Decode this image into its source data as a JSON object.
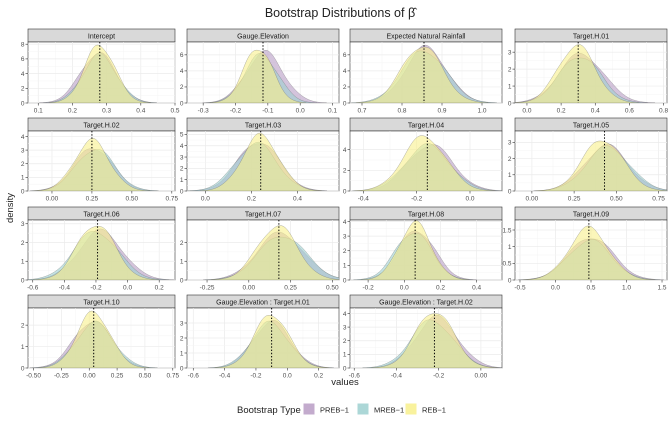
{
  "chart_data": {
    "type": "area",
    "title": "Bootstrap Distributions of",
    "title_symbol": "β̂",
    "xlabel": "values",
    "ylabel": "density",
    "legend": {
      "title": "Bootstrap Type",
      "placement": "bottom",
      "entries": [
        {
          "name": "PREB−1",
          "color": "#b89cc4"
        },
        {
          "name": "MREB−1",
          "color": "#9ed0d0"
        },
        {
          "name": "REB−1",
          "color": "#f8f08c"
        }
      ]
    },
    "panels": [
      {
        "label": "Intercept",
        "xlim": [
          0.07,
          0.5
        ],
        "ylim": [
          0,
          8.3
        ],
        "xticks": [
          0.1,
          0.2,
          0.3,
          0.4,
          0.5
        ],
        "xtick_labels": [
          "0.1",
          "0.2",
          "0.3",
          "0.4",
          "0.5"
        ],
        "yticks": [
          0,
          2,
          4,
          6,
          8
        ],
        "vline": 0.28,
        "means": [
          0.275,
          0.28,
          0.28
        ],
        "sds": [
          0.052,
          0.05,
          0.045
        ],
        "peaks": [
          6.8,
          6.5,
          7.9
        ]
      },
      {
        "label": "Gauge.Elevation",
        "xlim": [
          -0.35,
          0.12
        ],
        "ylim": [
          0,
          7.6
        ],
        "xticks": [
          -0.3,
          -0.2,
          -0.1,
          0.0,
          0.1
        ],
        "xtick_labels": [
          "-0.3",
          "-0.2",
          "-0.1",
          "0.0",
          "0.1"
        ],
        "yticks": [
          0,
          2,
          4,
          6
        ],
        "vline": -0.115,
        "means": [
          -0.11,
          -0.12,
          -0.13
        ],
        "sds": [
          0.058,
          0.052,
          0.045
        ],
        "peaks": [
          6.3,
          6.0,
          6.9
        ]
      },
      {
        "label": "Expected Natural Rainfall",
        "xlim": [
          0.67,
          1.05
        ],
        "ylim": [
          0,
          7.6
        ],
        "xticks": [
          0.7,
          0.8,
          0.9,
          1.0
        ],
        "xtick_labels": [
          "0.7",
          "0.8",
          "0.9",
          "1.0"
        ],
        "yticks": [
          0,
          2,
          4,
          6
        ],
        "vline": 0.855,
        "means": [
          0.86,
          0.855,
          0.85
        ],
        "sds": [
          0.052,
          0.055,
          0.05
        ],
        "peaks": [
          6.9,
          6.6,
          7.2
        ]
      },
      {
        "label": "Target.H.01",
        "xlim": [
          -0.07,
          0.82
        ],
        "ylim": [
          0,
          3.6
        ],
        "xticks": [
          0.0,
          0.2,
          0.4,
          0.6,
          0.8
        ],
        "xtick_labels": [
          "0.0",
          "0.2",
          "0.4",
          "0.6",
          "0.8"
        ],
        "yticks": [
          0,
          1,
          2,
          3
        ],
        "vline": 0.3,
        "means": [
          0.32,
          0.31,
          0.29
        ],
        "sds": [
          0.13,
          0.12,
          0.11
        ],
        "peaks": [
          2.9,
          2.8,
          3.4
        ]
      },
      {
        "label": "Target.H.02",
        "xlim": [
          -0.15,
          0.77
        ],
        "ylim": [
          0,
          4.4
        ],
        "xticks": [
          0.0,
          0.25,
          0.5,
          0.75
        ],
        "xtick_labels": [
          "0.00",
          "0.25",
          "0.50",
          "0.75"
        ],
        "yticks": [
          0,
          1,
          2,
          3,
          4
        ],
        "vline": 0.25,
        "means": [
          0.26,
          0.27,
          0.25
        ],
        "sds": [
          0.12,
          0.12,
          0.11
        ],
        "peaks": [
          3.2,
          3.1,
          3.7
        ]
      },
      {
        "label": "Target.H.03",
        "xlim": [
          -0.08,
          0.58
        ],
        "ylim": [
          0,
          5.3
        ],
        "xticks": [
          0.0,
          0.2,
          0.4
        ],
        "xtick_labels": [
          "0.0",
          "0.2",
          "0.4"
        ],
        "yticks": [
          0,
          1,
          2,
          3,
          4,
          5
        ],
        "vline": 0.24,
        "means": [
          0.23,
          0.22,
          0.24
        ],
        "sds": [
          0.09,
          0.09,
          0.08
        ],
        "peaks": [
          4.4,
          4.2,
          4.9
        ]
      },
      {
        "label": "Target.H.04",
        "xlim": [
          -0.45,
          0.12
        ],
        "ylim": [
          0,
          5.8
        ],
        "xticks": [
          -0.4,
          -0.2,
          0.0
        ],
        "xtick_labels": [
          "-0.4",
          "-0.2",
          "0.0"
        ],
        "yticks": [
          0,
          2,
          4
        ],
        "vline": -0.16,
        "means": [
          -0.15,
          -0.16,
          -0.17
        ],
        "sds": [
          0.085,
          0.085,
          0.08
        ],
        "peaks": [
          4.5,
          4.4,
          5.3
        ]
      },
      {
        "label": "Target.H.05",
        "xlim": [
          -0.1,
          0.8
        ],
        "ylim": [
          0,
          3.7
        ],
        "xticks": [
          0.0,
          0.25,
          0.5,
          0.75
        ],
        "xtick_labels": [
          "0.00",
          "0.25",
          "0.50",
          "0.75"
        ],
        "yticks": [
          0,
          1,
          2,
          3
        ],
        "vline": 0.43,
        "means": [
          0.44,
          0.45,
          0.42
        ],
        "sds": [
          0.13,
          0.13,
          0.12
        ],
        "peaks": [
          2.8,
          2.7,
          3.2
        ]
      },
      {
        "label": "Target.H.06",
        "xlim": [
          -0.63,
          0.3
        ],
        "ylim": [
          0,
          3.2
        ],
        "xticks": [
          -0.6,
          -0.4,
          -0.2,
          0.0,
          0.2
        ],
        "xtick_labels": [
          "-0.6",
          "-0.4",
          "-0.2",
          "0.0",
          "0.2"
        ],
        "yticks": [
          0,
          1,
          2,
          3
        ],
        "vline": -0.19,
        "means": [
          -0.17,
          -0.2,
          -0.2
        ],
        "sds": [
          0.14,
          0.14,
          0.12
        ],
        "peaks": [
          2.6,
          2.6,
          3.0
        ]
      },
      {
        "label": "Target.H.07",
        "xlim": [
          -0.37,
          0.54
        ],
        "ylim": [
          0,
          3.2
        ],
        "xticks": [
          -0.25,
          0.0,
          0.25,
          0.5
        ],
        "xtick_labels": [
          "-0.25",
          "0.00",
          "0.25",
          "0.50"
        ],
        "yticks": [
          0,
          1,
          2
        ],
        "vline": 0.18,
        "means": [
          0.19,
          0.2,
          0.17
        ],
        "sds": [
          0.14,
          0.14,
          0.12
        ],
        "peaks": [
          2.5,
          2.4,
          2.9
        ]
      },
      {
        "label": "Target.H.08",
        "xlim": [
          -0.3,
          0.54
        ],
        "ylim": [
          0,
          4.1
        ],
        "xticks": [
          -0.2,
          0.0,
          0.2,
          0.4
        ],
        "xtick_labels": [
          "-0.2",
          "0.0",
          "0.2",
          "0.4"
        ],
        "yticks": [
          0,
          1,
          2,
          3,
          4
        ],
        "vline": 0.06,
        "means": [
          0.07,
          0.05,
          0.06
        ],
        "sds": [
          0.1,
          0.1,
          0.09
        ],
        "peaks": [
          3.4,
          3.3,
          3.9
        ]
      },
      {
        "label": "Target.H.09",
        "xlim": [
          -0.57,
          1.57
        ],
        "ylim": [
          0,
          1.8
        ],
        "xticks": [
          -0.5,
          0.0,
          0.5,
          1.0,
          1.5
        ],
        "xtick_labels": [
          "-0.5",
          "0.0",
          "0.5",
          "1.0",
          "1.5"
        ],
        "yticks": [
          0,
          0.5,
          1.0,
          1.5
        ],
        "vline": 0.47,
        "means": [
          0.5,
          0.48,
          0.47
        ],
        "sds": [
          0.31,
          0.3,
          0.28
        ],
        "peaks": [
          1.3,
          1.2,
          1.55
        ]
      },
      {
        "label": "Target.H.10",
        "xlim": [
          -0.55,
          0.77
        ],
        "ylim": [
          0,
          2.8
        ],
        "xticks": [
          -0.5,
          -0.25,
          0.0,
          0.25,
          0.5,
          0.75
        ],
        "xtick_labels": [
          "-0.50",
          "-0.25",
          "0.00",
          "0.25",
          "0.50",
          "0.75"
        ],
        "yticks": [
          0,
          1,
          2
        ],
        "vline": 0.04,
        "means": [
          0.03,
          0.05,
          0.04
        ],
        "sds": [
          0.17,
          0.17,
          0.15
        ],
        "peaks": [
          2.2,
          2.1,
          2.6
        ]
      },
      {
        "label": "Gauge.Elevation : Target.H.01",
        "xlim": [
          -0.64,
          0.33
        ],
        "ylim": [
          0,
          4.0
        ],
        "xticks": [
          -0.6,
          -0.4,
          -0.2,
          0.0,
          0.2
        ],
        "xtick_labels": [
          "-0.6",
          "-0.4",
          "-0.2",
          "0.0",
          "0.2"
        ],
        "yticks": [
          0,
          1,
          2,
          3
        ],
        "vline": -0.1,
        "means": [
          -0.1,
          -0.11,
          -0.1
        ],
        "sds": [
          0.12,
          0.12,
          0.11
        ],
        "peaks": [
          3.1,
          3.0,
          3.6
        ]
      },
      {
        "label": "Gauge.Elevation : Target.H.02",
        "xlim": [
          -0.62,
          0.1
        ],
        "ylim": [
          0,
          4.4
        ],
        "xticks": [
          -0.6,
          -0.4,
          -0.2,
          0.0
        ],
        "xtick_labels": [
          "-0.6",
          "-0.4",
          "-0.2",
          "0.00"
        ],
        "yticks": [
          0,
          1,
          2,
          3,
          4
        ],
        "vline": -0.22,
        "means": [
          -0.21,
          -0.23,
          -0.22
        ],
        "sds": [
          0.1,
          0.1,
          0.09
        ],
        "peaks": [
          3.7,
          3.5,
          4.2
        ]
      }
    ]
  }
}
